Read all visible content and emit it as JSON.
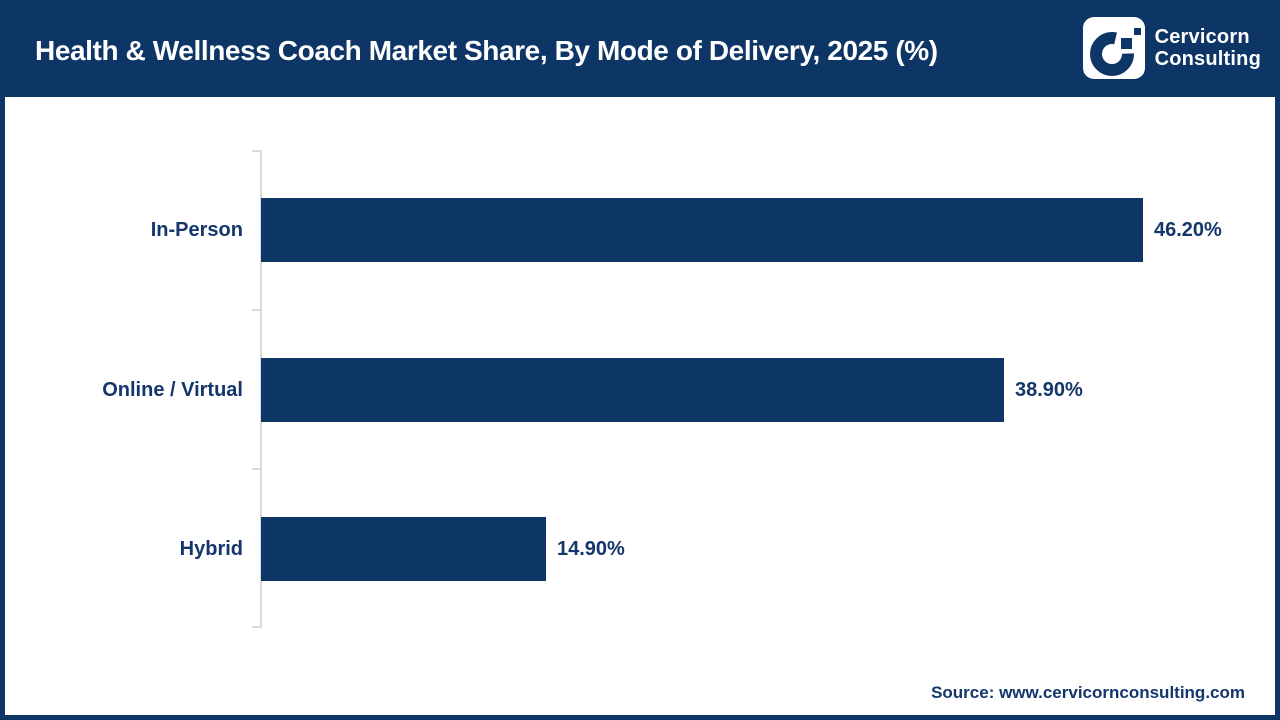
{
  "header": {
    "title": "Health & Wellness Coach Market Share, By Mode of Delivery, 2025 (%)",
    "logo": {
      "line1": "Cervicorn",
      "line2": "Consulting"
    }
  },
  "chart_data": {
    "type": "bar",
    "orientation": "horizontal",
    "title": "Health & Wellness Coach Market Share, By Mode of Delivery, 2025 (%)",
    "categories": [
      "In-Person",
      "Online / Virtual",
      "Hybrid"
    ],
    "values": [
      46.2,
      38.9,
      14.9
    ],
    "value_labels": [
      "46.20%",
      "38.90%",
      "14.90%"
    ],
    "xlim": [
      0,
      50
    ],
    "grid": false,
    "legend": false,
    "bar_color": "#0d3566",
    "text_color": "#14366b",
    "axis_color": "#d9d9d9"
  },
  "footer": {
    "source": "Source: www.cervicornconsulting.com"
  },
  "colors": {
    "navy": "#0d3566",
    "background": "#ffffff"
  }
}
